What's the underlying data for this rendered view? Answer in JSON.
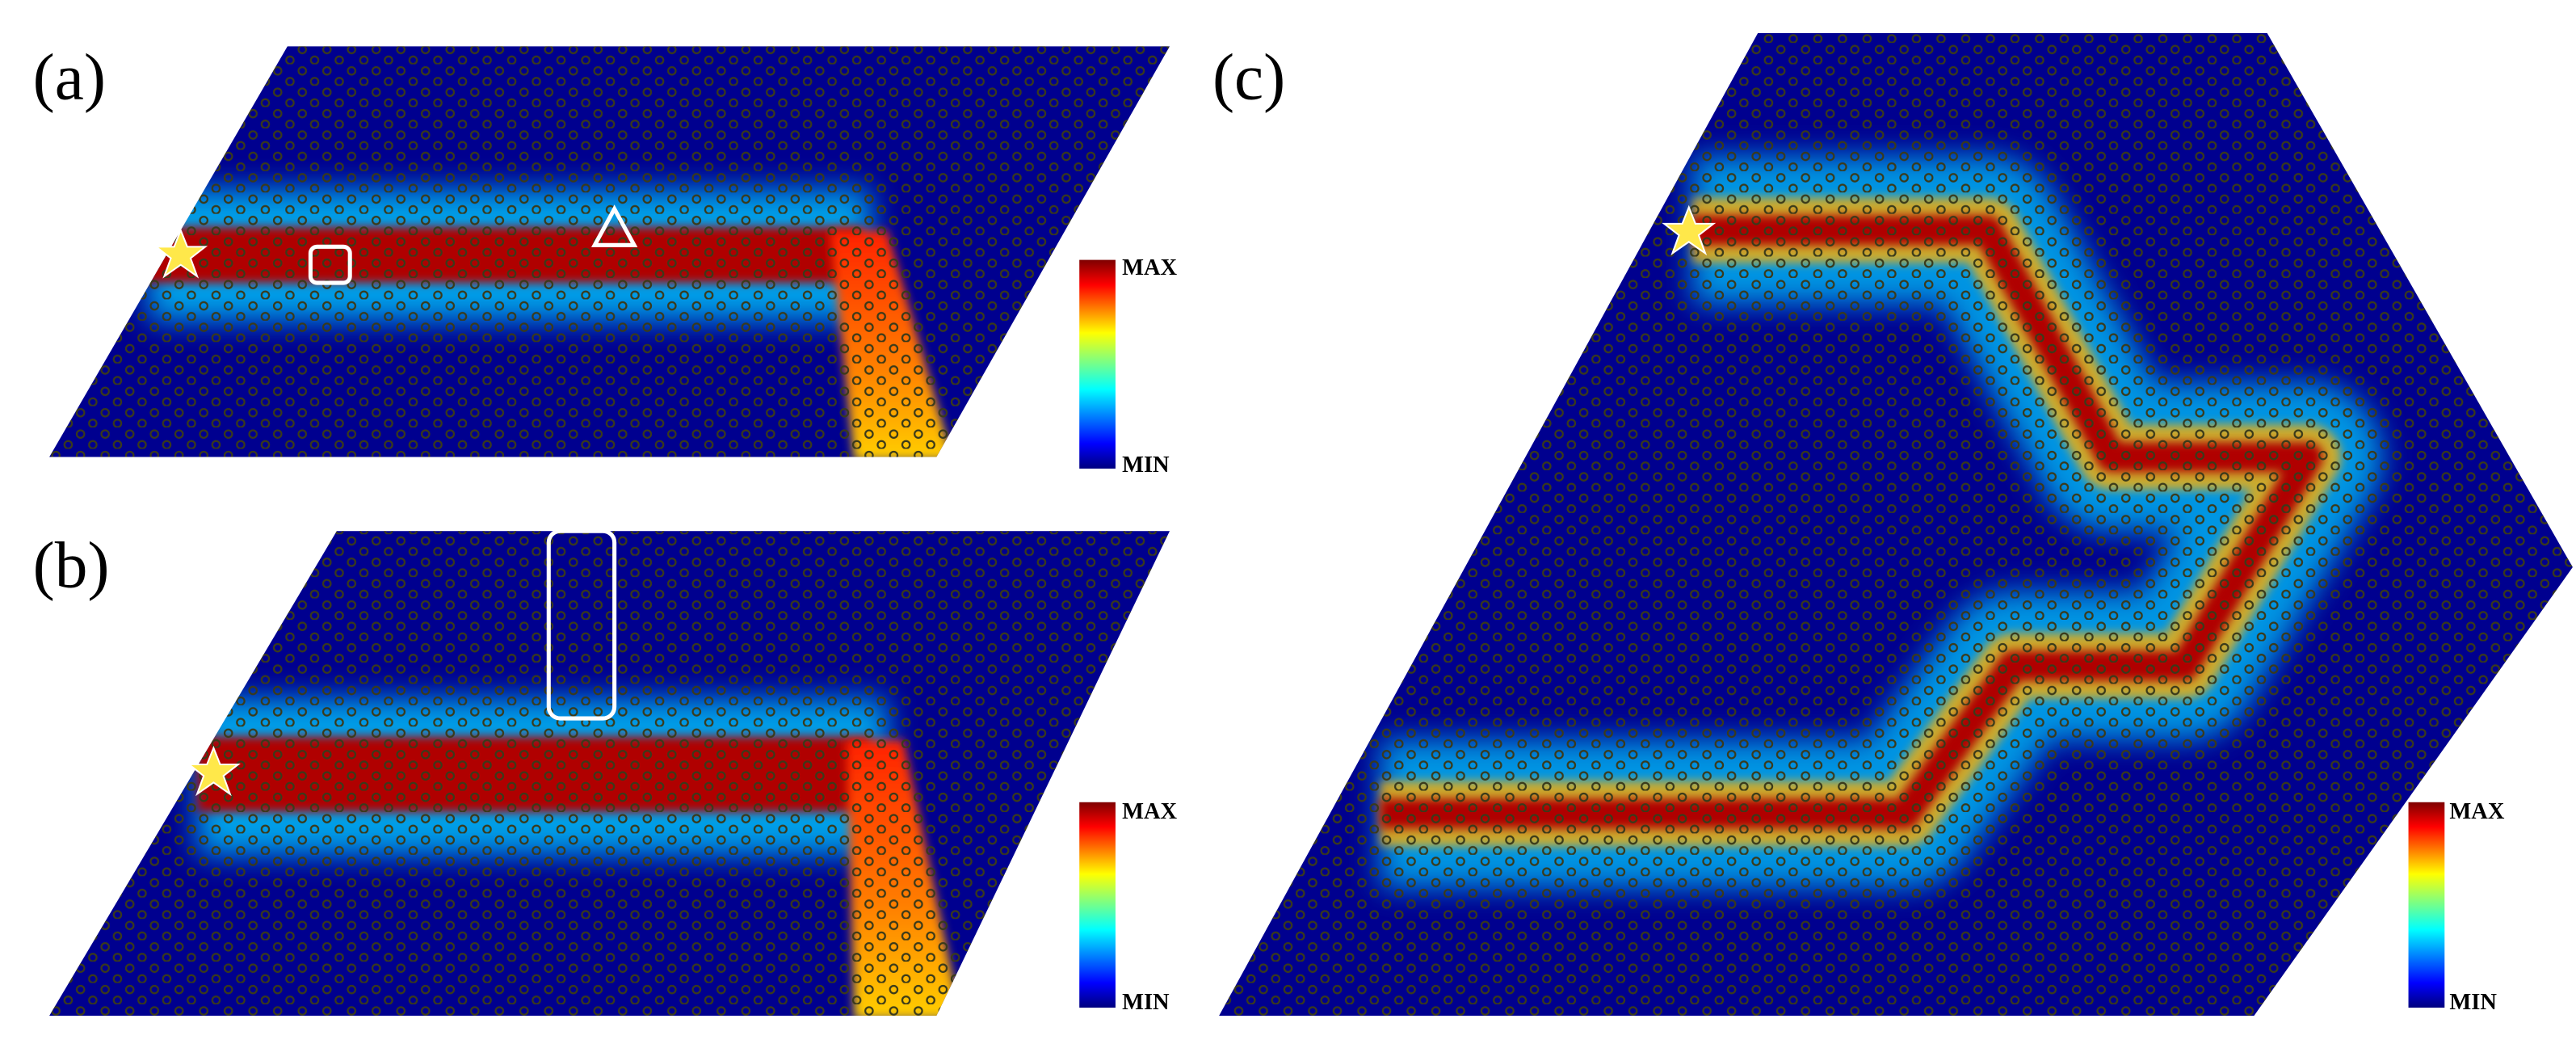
{
  "panels": [
    {
      "label": "(a)",
      "colorbar": {
        "max": "MAX",
        "min": "MIN"
      }
    },
    {
      "label": "(b)",
      "colorbar": {
        "max": "MAX",
        "min": "MIN"
      }
    },
    {
      "label": "(c)",
      "colorbar": {
        "max": "MAX",
        "min": "MIN"
      }
    }
  ]
}
